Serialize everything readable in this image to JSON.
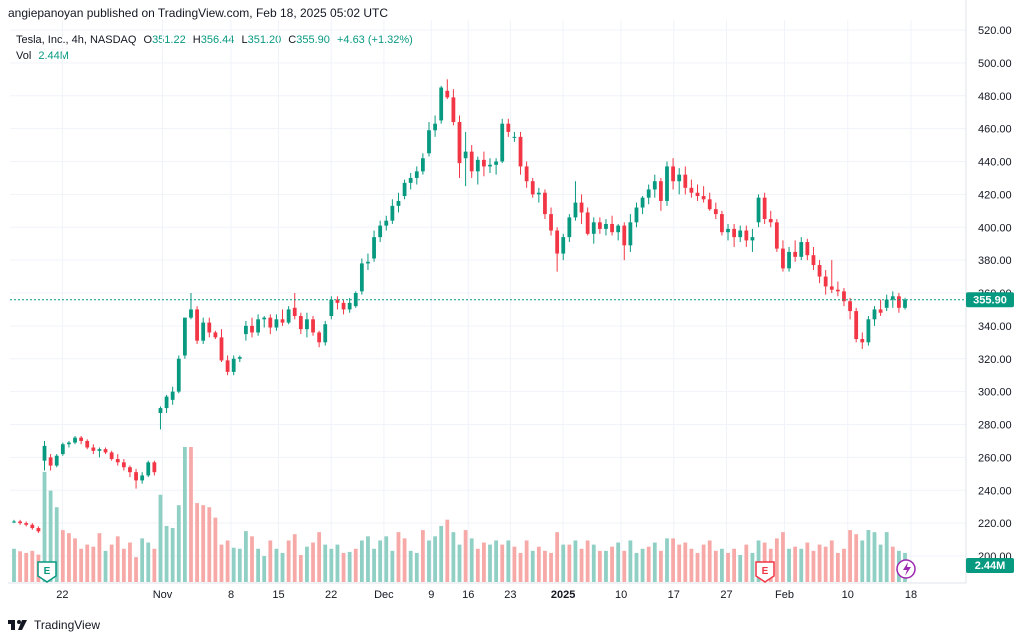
{
  "header": "angiepanoyan published on TradingView.com, Feb 18, 2025 05:02 UTC",
  "legend": {
    "symbol": "Tesla, Inc., 4h, NASDAQ",
    "o_label": "O",
    "o": "351.22",
    "h_label": "H",
    "h": "356.44",
    "l_label": "L",
    "l": "351.20",
    "c_label": "C",
    "c": "355.90",
    "change": "+4.63 (+1.32%)",
    "vol_label": "Vol",
    "vol": "2.44M"
  },
  "price_badge": "355.90",
  "volume_badge": "2.44M",
  "footer_brand": "TradingView",
  "colors": {
    "up": "#089981",
    "down": "#f23645",
    "up_vol": "#8fcfc4",
    "down_vol": "#f7a9a7"
  },
  "earnings_marker": "E",
  "chart_data": {
    "type": "candlestick",
    "y_ticks": [
      "520.00",
      "500.00",
      "480.00",
      "460.00",
      "440.00",
      "420.00",
      "400.00",
      "380.00",
      "360.00",
      "340.00",
      "320.00",
      "300.00",
      "280.00",
      "260.00",
      "240.00",
      "220.00",
      "200.00"
    ],
    "ylim": [
      196,
      524
    ],
    "x_ticks": [
      "22",
      "Nov",
      "8",
      "15",
      "22",
      "Dec",
      "9",
      "16",
      "23",
      "2025",
      "10",
      "17",
      "27",
      "Feb",
      "10",
      "18"
    ],
    "last_close": 355.9,
    "candles": [
      [
        221,
        222,
        220,
        221
      ],
      [
        221,
        222,
        219,
        220
      ],
      [
        220,
        221,
        218,
        219
      ],
      [
        219,
        220,
        216,
        217
      ],
      [
        217,
        218,
        214,
        215
      ],
      [
        258,
        270,
        252,
        267
      ],
      [
        260,
        262,
        252,
        255
      ],
      [
        255,
        262,
        254,
        261
      ],
      [
        262,
        269,
        261,
        268
      ],
      [
        268,
        270,
        266,
        269
      ],
      [
        269,
        273,
        268,
        272
      ],
      [
        272,
        273,
        268,
        270
      ],
      [
        270,
        271,
        265,
        266
      ],
      [
        266,
        268,
        262,
        264
      ],
      [
        264,
        266,
        260,
        265
      ],
      [
        265,
        266,
        262,
        263
      ],
      [
        263,
        264,
        258,
        259
      ],
      [
        259,
        262,
        255,
        257
      ],
      [
        257,
        259,
        252,
        254
      ],
      [
        254,
        255,
        248,
        251
      ],
      [
        251,
        253,
        241,
        246
      ],
      [
        246,
        251,
        244,
        249
      ],
      [
        249,
        258,
        248,
        257
      ],
      [
        257,
        258,
        249,
        251
      ],
      [
        287,
        291,
        277,
        290
      ],
      [
        290,
        298,
        287,
        297
      ],
      [
        295,
        303,
        292,
        300
      ],
      [
        300,
        322,
        299,
        320
      ],
      [
        322,
        345,
        320,
        345
      ],
      [
        345,
        360,
        344,
        350
      ],
      [
        350,
        352,
        329,
        331
      ],
      [
        331,
        345,
        329,
        342
      ],
      [
        342,
        345,
        333,
        336
      ],
      [
        336,
        337,
        332,
        333
      ],
      [
        333,
        338,
        318,
        319
      ],
      [
        319,
        322,
        310,
        312
      ],
      [
        312,
        322,
        310,
        320
      ],
      [
        320,
        322,
        318,
        321
      ],
      [
        335,
        343,
        331,
        340
      ],
      [
        340,
        345,
        333,
        336
      ],
      [
        336,
        347,
        334,
        344
      ],
      [
        344,
        346,
        339,
        345
      ],
      [
        345,
        347,
        335,
        339
      ],
      [
        339,
        347,
        337,
        344
      ],
      [
        344,
        350,
        340,
        342
      ],
      [
        342,
        352,
        341,
        350
      ],
      [
        351,
        360,
        344,
        346
      ],
      [
        346,
        348,
        335,
        338
      ],
      [
        338,
        348,
        333,
        344
      ],
      [
        344,
        346,
        334,
        336
      ],
      [
        336,
        337,
        327,
        330
      ],
      [
        330,
        343,
        328,
        341
      ],
      [
        346,
        358,
        344,
        356
      ],
      [
        356,
        358,
        350,
        354
      ],
      [
        354,
        356,
        347,
        350
      ],
      [
        350,
        357,
        348,
        354
      ],
      [
        352,
        361,
        351,
        360
      ],
      [
        361,
        381,
        359,
        378
      ],
      [
        378,
        384,
        374,
        379
      ],
      [
        381,
        398,
        379,
        394
      ],
      [
        394,
        404,
        391,
        401
      ],
      [
        401,
        407,
        398,
        404
      ],
      [
        404,
        417,
        402,
        413
      ],
      [
        413,
        421,
        409,
        416
      ],
      [
        419,
        429,
        417,
        427
      ],
      [
        427,
        433,
        423,
        430
      ],
      [
        430,
        437,
        426,
        434
      ],
      [
        434,
        445,
        432,
        442
      ],
      [
        445,
        464,
        443,
        459
      ],
      [
        459,
        468,
        455,
        463
      ],
      [
        465,
        486,
        463,
        485
      ],
      [
        483,
        490,
        478,
        479
      ],
      [
        479,
        484,
        462,
        464
      ],
      [
        464,
        468,
        430,
        439
      ],
      [
        442,
        458,
        425,
        446
      ],
      [
        446,
        450,
        430,
        434
      ],
      [
        434,
        443,
        426,
        441
      ],
      [
        441,
        446,
        431,
        437
      ],
      [
        437,
        442,
        433,
        438
      ],
      [
        438,
        442,
        432,
        440
      ],
      [
        440,
        466,
        439,
        463
      ],
      [
        463,
        466,
        455,
        458
      ],
      [
        455,
        458,
        452,
        455
      ],
      [
        455,
        458,
        432,
        437
      ],
      [
        437,
        440,
        424,
        428
      ],
      [
        428,
        430,
        418,
        420
      ],
      [
        420,
        424,
        415,
        421
      ],
      [
        421,
        423,
        405,
        408
      ],
      [
        408,
        412,
        395,
        398
      ],
      [
        398,
        400,
        373,
        384
      ],
      [
        384,
        396,
        380,
        394
      ],
      [
        394,
        408,
        391,
        406
      ],
      [
        406,
        428,
        404,
        415
      ],
      [
        415,
        420,
        402,
        409
      ],
      [
        409,
        412,
        395,
        396
      ],
      [
        396,
        406,
        390,
        403
      ],
      [
        403,
        406,
        396,
        399
      ],
      [
        399,
        405,
        395,
        402
      ],
      [
        402,
        407,
        395,
        397
      ],
      [
        397,
        402,
        392,
        401
      ],
      [
        401,
        403,
        380,
        389
      ],
      [
        389,
        408,
        385,
        403
      ],
      [
        403,
        415,
        400,
        412
      ],
      [
        412,
        419,
        408,
        418
      ],
      [
        418,
        426,
        414,
        423
      ],
      [
        423,
        432,
        418,
        428
      ],
      [
        428,
        430,
        410,
        416
      ],
      [
        416,
        440,
        413,
        437
      ],
      [
        437,
        442,
        423,
        428
      ],
      [
        428,
        436,
        420,
        432
      ],
      [
        432,
        437,
        420,
        424
      ],
      [
        424,
        429,
        418,
        421
      ],
      [
        421,
        426,
        416,
        419
      ],
      [
        419,
        425,
        415,
        417
      ],
      [
        417,
        421,
        410,
        411
      ],
      [
        411,
        415,
        405,
        408
      ],
      [
        408,
        410,
        395,
        397
      ],
      [
        397,
        402,
        392,
        399
      ],
      [
        399,
        402,
        388,
        394
      ],
      [
        394,
        401,
        391,
        398
      ],
      [
        398,
        401,
        388,
        392
      ],
      [
        392,
        399,
        385,
        394
      ],
      [
        403,
        420,
        400,
        418
      ],
      [
        418,
        421,
        402,
        405
      ],
      [
        405,
        410,
        400,
        403
      ],
      [
        403,
        405,
        385,
        387
      ],
      [
        387,
        392,
        373,
        375
      ],
      [
        375,
        388,
        373,
        385
      ],
      [
        385,
        392,
        379,
        382
      ],
      [
        382,
        394,
        380,
        391
      ],
      [
        391,
        393,
        380,
        383
      ],
      [
        383,
        388,
        374,
        377
      ],
      [
        377,
        380,
        366,
        370
      ],
      [
        370,
        374,
        359,
        364
      ],
      [
        364,
        380,
        360,
        362
      ],
      [
        362,
        367,
        358,
        361
      ],
      [
        361,
        363,
        352,
        355
      ],
      [
        355,
        357,
        344,
        349
      ],
      [
        349,
        351,
        330,
        332
      ],
      [
        332,
        336,
        326,
        330
      ],
      [
        330,
        346,
        328,
        344
      ],
      [
        344,
        352,
        340,
        350
      ],
      [
        350,
        356,
        346,
        348
      ],
      [
        351,
        359,
        349,
        356
      ],
      [
        356,
        361,
        351,
        358
      ],
      [
        358,
        360,
        348,
        351
      ],
      [
        351,
        357,
        350,
        356
      ]
    ],
    "volumes": [
      [
        160,
        1
      ],
      [
        148,
        0
      ],
      [
        140,
        0
      ],
      [
        150,
        0
      ],
      [
        132,
        0
      ],
      [
        530,
        1
      ],
      [
        440,
        1
      ],
      [
        360,
        1
      ],
      [
        250,
        0
      ],
      [
        235,
        0
      ],
      [
        210,
        0
      ],
      [
        160,
        0
      ],
      [
        180,
        0
      ],
      [
        170,
        0
      ],
      [
        235,
        0
      ],
      [
        150,
        1
      ],
      [
        180,
        0
      ],
      [
        220,
        0
      ],
      [
        160,
        0
      ],
      [
        190,
        0
      ],
      [
        120,
        0
      ],
      [
        210,
        1
      ],
      [
        190,
        1
      ],
      [
        160,
        0
      ],
      [
        420,
        1
      ],
      [
        270,
        1
      ],
      [
        260,
        1
      ],
      [
        370,
        1
      ],
      [
        650,
        1
      ],
      [
        650,
        0
      ],
      [
        380,
        0
      ],
      [
        370,
        0
      ],
      [
        360,
        0
      ],
      [
        310,
        0
      ],
      [
        180,
        0
      ],
      [
        200,
        0
      ],
      [
        165,
        1
      ],
      [
        160,
        1
      ],
      [
        245,
        1
      ],
      [
        220,
        0
      ],
      [
        160,
        1
      ],
      [
        125,
        1
      ],
      [
        200,
        0
      ],
      [
        160,
        1
      ],
      [
        140,
        1
      ],
      [
        200,
        0
      ],
      [
        230,
        0
      ],
      [
        130,
        0
      ],
      [
        170,
        1
      ],
      [
        190,
        0
      ],
      [
        240,
        0
      ],
      [
        180,
        1
      ],
      [
        160,
        1
      ],
      [
        180,
        1
      ],
      [
        140,
        0
      ],
      [
        145,
        1
      ],
      [
        160,
        0
      ],
      [
        200,
        1
      ],
      [
        220,
        1
      ],
      [
        160,
        1
      ],
      [
        200,
        1
      ],
      [
        220,
        1
      ],
      [
        150,
        1
      ],
      [
        240,
        0
      ],
      [
        210,
        0
      ],
      [
        150,
        1
      ],
      [
        140,
        1
      ],
      [
        250,
        0
      ],
      [
        200,
        1
      ],
      [
        220,
        1
      ],
      [
        270,
        1
      ],
      [
        300,
        0
      ],
      [
        240,
        1
      ],
      [
        180,
        1
      ],
      [
        250,
        0
      ],
      [
        210,
        1
      ],
      [
        160,
        0
      ],
      [
        190,
        0
      ],
      [
        180,
        1
      ],
      [
        200,
        1
      ],
      [
        180,
        0
      ],
      [
        200,
        1
      ],
      [
        170,
        0
      ],
      [
        140,
        0
      ],
      [
        200,
        0
      ],
      [
        150,
        1
      ],
      [
        170,
        0
      ],
      [
        150,
        0
      ],
      [
        140,
        0
      ],
      [
        240,
        0
      ],
      [
        180,
        1
      ],
      [
        180,
        0
      ],
      [
        200,
        1
      ],
      [
        160,
        0
      ],
      [
        200,
        0
      ],
      [
        180,
        1
      ],
      [
        150,
        0
      ],
      [
        150,
        1
      ],
      [
        170,
        0
      ],
      [
        190,
        1
      ],
      [
        150,
        0
      ],
      [
        200,
        1
      ],
      [
        140,
        1
      ],
      [
        160,
        1
      ],
      [
        170,
        0
      ],
      [
        190,
        1
      ],
      [
        150,
        0
      ],
      [
        210,
        1
      ],
      [
        210,
        0
      ],
      [
        180,
        0
      ],
      [
        190,
        0
      ],
      [
        160,
        0
      ],
      [
        140,
        0
      ],
      [
        180,
        0
      ],
      [
        200,
        0
      ],
      [
        150,
        0
      ],
      [
        160,
        1
      ],
      [
        140,
        0
      ],
      [
        160,
        0
      ],
      [
        130,
        1
      ],
      [
        180,
        0
      ],
      [
        140,
        1
      ],
      [
        200,
        1
      ],
      [
        190,
        0
      ],
      [
        160,
        0
      ],
      [
        210,
        0
      ],
      [
        240,
        0
      ],
      [
        160,
        1
      ],
      [
        170,
        0
      ],
      [
        160,
        1
      ],
      [
        190,
        0
      ],
      [
        150,
        0
      ],
      [
        180,
        0
      ],
      [
        170,
        0
      ],
      [
        200,
        0
      ],
      [
        140,
        0
      ],
      [
        160,
        0
      ],
      [
        250,
        0
      ],
      [
        230,
        0
      ],
      [
        200,
        1
      ],
      [
        250,
        1
      ],
      [
        240,
        1
      ],
      [
        180,
        1
      ],
      [
        240,
        1
      ],
      [
        170,
        0
      ],
      [
        150,
        1
      ],
      [
        140,
        1
      ]
    ]
  }
}
